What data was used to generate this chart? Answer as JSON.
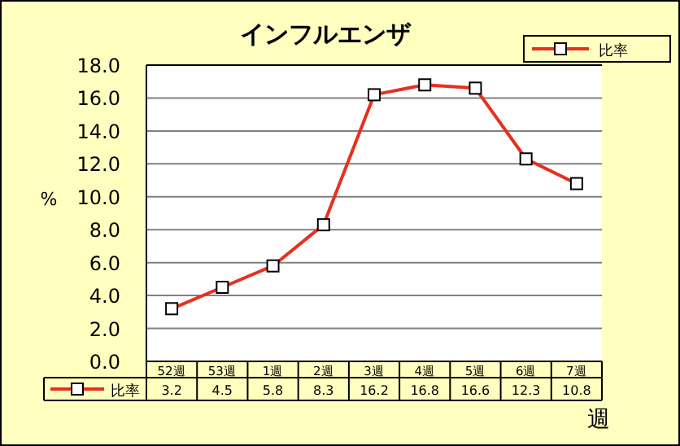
{
  "chart_data": {
    "type": "line",
    "title": "インフルエンザ",
    "ylabel": "%",
    "xlabel": "週",
    "categories": [
      "52週",
      "53週",
      "1週",
      "2週",
      "3週",
      "4週",
      "5週",
      "6週",
      "7週"
    ],
    "series": [
      {
        "name": "比率",
        "color": "#e83020",
        "values": [
          3.2,
          4.5,
          5.8,
          8.3,
          16.2,
          16.8,
          16.6,
          12.3,
          10.8
        ]
      }
    ],
    "ylim": [
      0,
      18
    ],
    "yticks": [
      {
        "value": 0,
        "label": "0.0"
      },
      {
        "value": 2,
        "label": "2.0"
      },
      {
        "value": 4,
        "label": "4.0"
      },
      {
        "value": 6,
        "label": "6.0"
      },
      {
        "value": 8,
        "label": "8.0"
      },
      {
        "value": 10,
        "label": "10.0"
      },
      {
        "value": 12,
        "label": "12.0"
      },
      {
        "value": 14,
        "label": "14.0"
      },
      {
        "value": 16,
        "label": "16.0"
      },
      {
        "value": 18,
        "label": "18.0"
      }
    ],
    "grid": "y",
    "legend": "top right",
    "marker": "square",
    "line_style": "solid",
    "data_labels": true
  }
}
